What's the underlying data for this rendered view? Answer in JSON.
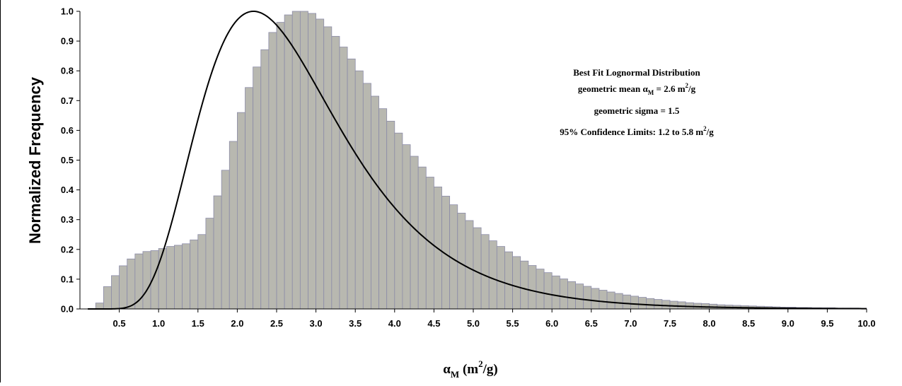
{
  "chart_data": {
    "type": "bar",
    "title": "",
    "ylabel": "Normalized Frequency",
    "xlabel": {
      "symbol": "α",
      "subscript": "M",
      "unit_open": " (m",
      "unit_sup": "2",
      "unit_close": "/g)"
    },
    "xlim": [
      0.0,
      10.0
    ],
    "ylim": [
      0.0,
      1.0
    ],
    "x_ticks": [
      "0.5",
      "1.0",
      "1.5",
      "2.0",
      "2.5",
      "3.0",
      "3.5",
      "4.0",
      "4.5",
      "5.0",
      "5.5",
      "6.0",
      "6.5",
      "7.0",
      "7.5",
      "8.0",
      "8.5",
      "9.0",
      "9.5",
      "10.0"
    ],
    "y_ticks": [
      "0.0",
      "0.1",
      "0.2",
      "0.3",
      "0.4",
      "0.5",
      "0.6",
      "0.7",
      "0.8",
      "0.9",
      "1.0"
    ],
    "grid": false,
    "bar_color": "#b8b8b0",
    "bar_edge_color": "#8c8ca8",
    "curve_color": "#000000",
    "histogram": {
      "name": "",
      "bin_width": 0.1,
      "x_start": 0.2,
      "values": [
        0.02,
        0.075,
        0.112,
        0.145,
        0.168,
        0.185,
        0.193,
        0.196,
        0.203,
        0.21,
        0.214,
        0.219,
        0.232,
        0.25,
        0.305,
        0.38,
        0.466,
        0.563,
        0.66,
        0.744,
        0.813,
        0.871,
        0.929,
        0.963,
        0.988,
        1.0,
        1.0,
        0.993,
        0.974,
        0.948,
        0.916,
        0.88,
        0.84,
        0.8,
        0.758,
        0.715,
        0.673,
        0.631,
        0.591,
        0.552,
        0.513,
        0.477,
        0.443,
        0.41,
        0.379,
        0.35,
        0.322,
        0.297,
        0.273,
        0.25,
        0.229,
        0.21,
        0.192,
        0.176,
        0.161,
        0.146,
        0.134,
        0.122,
        0.111,
        0.101,
        0.092,
        0.084,
        0.076,
        0.069,
        0.063,
        0.057,
        0.052,
        0.047,
        0.043,
        0.039,
        0.035,
        0.032,
        0.029,
        0.026,
        0.024,
        0.021,
        0.019,
        0.018,
        0.016,
        0.014,
        0.013,
        0.012,
        0.011,
        0.01,
        0.009,
        0.008,
        0.007,
        0.006,
        0.006,
        0.005,
        0.005,
        0.004,
        0.004,
        0.004,
        0.003,
        0.003,
        0.003,
        0.002
      ]
    },
    "fit_curve": {
      "name": "Best Fit Lognormal Distribution",
      "distribution": "lognormal",
      "geometric_mean": 2.6,
      "geometric_sigma": 1.5,
      "peak": 1.0
    },
    "annotation": {
      "line1": "Best Fit Lognormal Distribution",
      "line2_prefix": "geometric mean ",
      "line2_symbol": "α",
      "line2_sub": "M",
      "line2_mid": " = 2.6 m",
      "line2_sup": "2",
      "line2_suffix": "/g",
      "line3": "geometric sigma  = 1.5",
      "line4_prefix": "95% Confidence Limits:  1.2 to 5.8 m",
      "line4_sup": "2",
      "line4_suffix": "/g"
    }
  }
}
